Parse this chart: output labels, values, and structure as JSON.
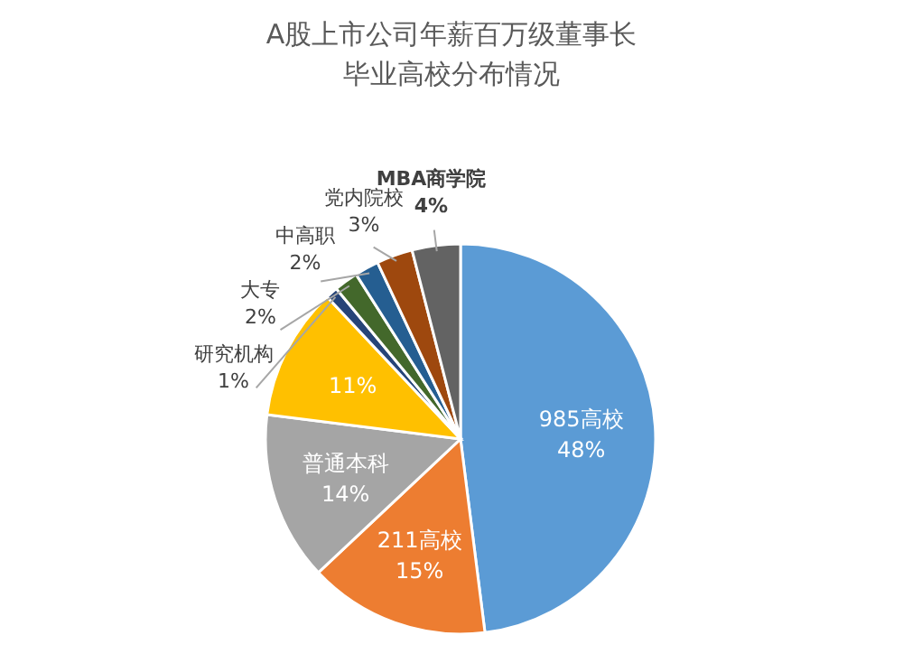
{
  "chart_data": {
    "type": "pie",
    "value_labels": [
      "48%",
      "15%",
      "14%",
      "11%",
      "1%",
      "2%",
      "2%",
      "3%",
      "4%"
    ],
    "title": "A股上市公司年薪百万级董事长",
    "subtitle": "毕业高校分布情况",
    "categories": [
      "985高校",
      "211高校",
      "普通本科",
      null,
      "研究机构",
      "大专",
      "中高职",
      "党内院校",
      "MBA商学院"
    ],
    "values": [
      48,
      15,
      14,
      11,
      1,
      2,
      2,
      3,
      4
    ],
    "colors": [
      "#5b9bd5",
      "#ed7d31",
      "#a5a5a5",
      "#ffc000",
      "#264478",
      "#43682b",
      "#255e91",
      "#9e480e",
      "#636363"
    ]
  }
}
